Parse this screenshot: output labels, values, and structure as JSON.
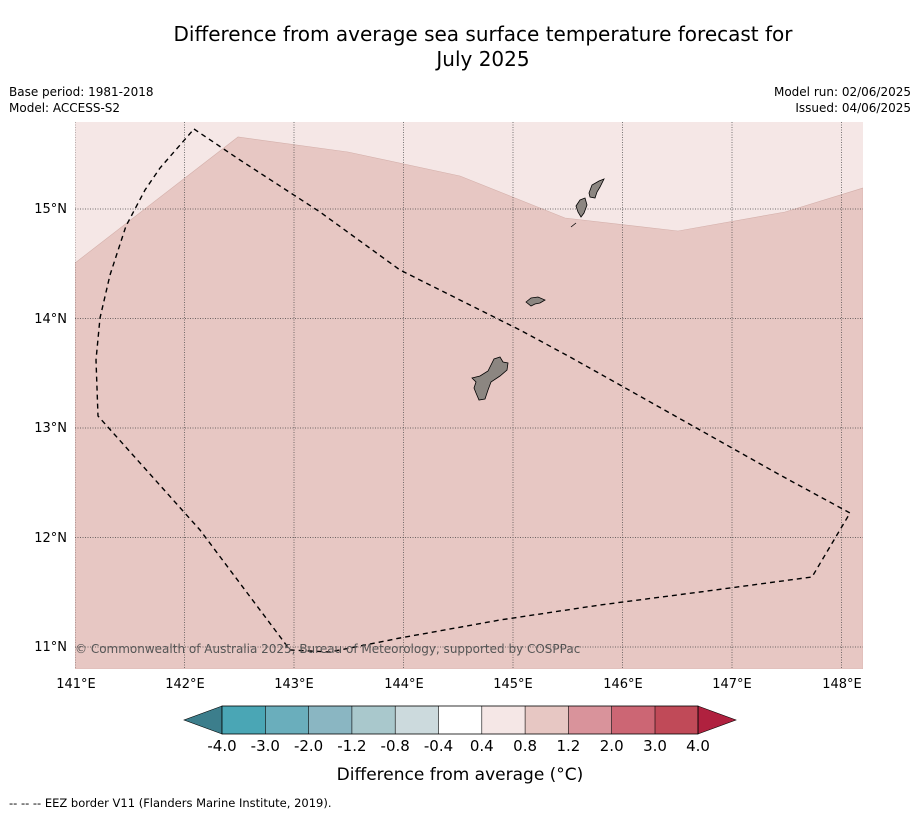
{
  "title": "Difference from average sea surface temperature forecast for",
  "title_line2": "July 2025",
  "meta_left": {
    "base_period": "Base period: 1981-2018",
    "model": "Model: ACCESS-S2"
  },
  "meta_right": {
    "model_run": "Model run: 02/06/2025",
    "issued": "Issued: 04/06/2025"
  },
  "map": {
    "lat_labels": [
      "15°N",
      "14°N",
      "13°N",
      "12°N",
      "11°N"
    ],
    "lon_labels": [
      "141°E",
      "142°E",
      "143°E",
      "144°E",
      "145°E",
      "146°E",
      "147°E",
      "148°E"
    ],
    "copyright": "© Commonwealth of Australia 2025, Bureau of Meteorology, supported by COSPPac",
    "colors": {
      "anomaly_0_4_to_0_8": "#f5e7e6",
      "anomaly_0_8_to_1_2": "#e7c7c3",
      "land": "#8c8681"
    }
  },
  "colorbar": {
    "tick_labels": [
      "-4.0",
      "-3.0",
      "-2.0",
      "-1.2",
      "-0.8",
      "-0.4",
      "0.4",
      "0.8",
      "1.2",
      "2.0",
      "3.0",
      "4.0"
    ],
    "colors": [
      "#3c7e8c",
      "#4aa6b5",
      "#6aaebc",
      "#8ab6c2",
      "#a9c8cc",
      "#ccdadd",
      "#ffffff",
      "#f5e7e6",
      "#e7c7c3",
      "#d9939b",
      "#cc6674",
      "#c04a58",
      "#b0213f"
    ],
    "title": "Difference from average (°C)"
  },
  "footnote": "--  --  -- EEZ border V11 (Flanders Marine Institute, 2019)."
}
